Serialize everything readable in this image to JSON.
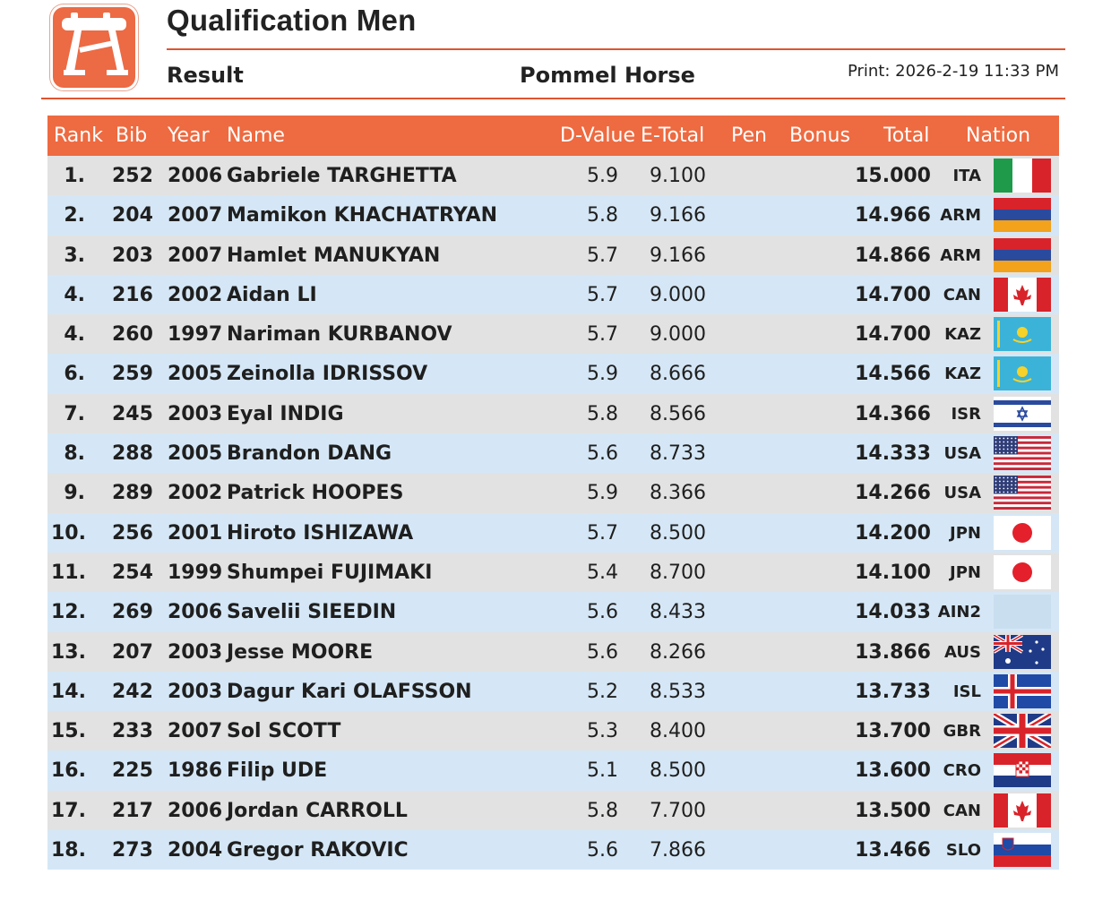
{
  "header": {
    "title": "Qualification Men",
    "subtitle_left": "Result",
    "subtitle_mid": "Pommel Horse",
    "print": "Print: 2026-2-19 11:33 PM",
    "logo_icon": "pommel-horse-icon"
  },
  "colors": {
    "accent": "#ee6a40",
    "row_odd": "#e2e2e2",
    "row_even": "#d5e7f6"
  },
  "columns": {
    "rank": "Rank",
    "bib": "Bib",
    "year": "Year",
    "name": "Name",
    "dvalue": "D-Value",
    "etotal": "E-Total",
    "pen": "Pen",
    "bonus": "Bonus",
    "total": "Total",
    "nation": "Nation"
  },
  "rows": [
    {
      "rank": "1.",
      "bib": "252",
      "year": "2006",
      "name": "Gabriele TARGHETTA",
      "dvalue": "5.9",
      "etotal": "9.100",
      "total": "15.000",
      "nation": "ITA",
      "flag": "italy-flag"
    },
    {
      "rank": "2.",
      "bib": "204",
      "year": "2007",
      "name": "Mamikon KHACHATRYAN",
      "dvalue": "5.8",
      "etotal": "9.166",
      "total": "14.966",
      "nation": "ARM",
      "flag": "armenia-flag"
    },
    {
      "rank": "3.",
      "bib": "203",
      "year": "2007",
      "name": "Hamlet MANUKYAN",
      "dvalue": "5.7",
      "etotal": "9.166",
      "total": "14.866",
      "nation": "ARM",
      "flag": "armenia-flag"
    },
    {
      "rank": "4.",
      "bib": "216",
      "year": "2002",
      "name": "Aidan LI",
      "dvalue": "5.7",
      "etotal": "9.000",
      "total": "14.700",
      "nation": "CAN",
      "flag": "canada-flag"
    },
    {
      "rank": "4.",
      "bib": "260",
      "year": "1997",
      "name": "Nariman KURBANOV",
      "dvalue": "5.7",
      "etotal": "9.000",
      "total": "14.700",
      "nation": "KAZ",
      "flag": "kazakhstan-flag"
    },
    {
      "rank": "6.",
      "bib": "259",
      "year": "2005",
      "name": "Zeinolla IDRISSOV",
      "dvalue": "5.9",
      "etotal": "8.666",
      "total": "14.566",
      "nation": "KAZ",
      "flag": "kazakhstan-flag"
    },
    {
      "rank": "7.",
      "bib": "245",
      "year": "2003",
      "name": "Eyal INDIG",
      "dvalue": "5.8",
      "etotal": "8.566",
      "total": "14.366",
      "nation": "ISR",
      "flag": "israel-flag"
    },
    {
      "rank": "8.",
      "bib": "288",
      "year": "2005",
      "name": "Brandon DANG",
      "dvalue": "5.6",
      "etotal": "8.733",
      "total": "14.333",
      "nation": "USA",
      "flag": "usa-flag"
    },
    {
      "rank": "9.",
      "bib": "289",
      "year": "2002",
      "name": "Patrick HOOPES",
      "dvalue": "5.9",
      "etotal": "8.366",
      "total": "14.266",
      "nation": "USA",
      "flag": "usa-flag"
    },
    {
      "rank": "10.",
      "bib": "256",
      "year": "2001",
      "name": "Hiroto ISHIZAWA",
      "dvalue": "5.7",
      "etotal": "8.500",
      "total": "14.200",
      "nation": "JPN",
      "flag": "japan-flag"
    },
    {
      "rank": "11.",
      "bib": "254",
      "year": "1999",
      "name": "Shumpei FUJIMAKI",
      "dvalue": "5.4",
      "etotal": "8.700",
      "total": "14.100",
      "nation": "JPN",
      "flag": "japan-flag"
    },
    {
      "rank": "12.",
      "bib": "269",
      "year": "2006",
      "name": "Savelii SIEEDIN",
      "dvalue": "5.6",
      "etotal": "8.433",
      "total": "14.033",
      "nation": "AIN2",
      "flag": "neutral-flag"
    },
    {
      "rank": "13.",
      "bib": "207",
      "year": "2003",
      "name": "Jesse MOORE",
      "dvalue": "5.6",
      "etotal": "8.266",
      "total": "13.866",
      "nation": "AUS",
      "flag": "australia-flag"
    },
    {
      "rank": "14.",
      "bib": "242",
      "year": "2003",
      "name": "Dagur Kari OLAFSSON",
      "dvalue": "5.2",
      "etotal": "8.533",
      "total": "13.733",
      "nation": "ISL",
      "flag": "iceland-flag"
    },
    {
      "rank": "15.",
      "bib": "233",
      "year": "2007",
      "name": "Sol SCOTT",
      "dvalue": "5.3",
      "etotal": "8.400",
      "total": "13.700",
      "nation": "GBR",
      "flag": "uk-flag"
    },
    {
      "rank": "16.",
      "bib": "225",
      "year": "1986",
      "name": "Filip UDE",
      "dvalue": "5.1",
      "etotal": "8.500",
      "total": "13.600",
      "nation": "CRO",
      "flag": "croatia-flag"
    },
    {
      "rank": "17.",
      "bib": "217",
      "year": "2006",
      "name": "Jordan CARROLL",
      "dvalue": "5.8",
      "etotal": "7.700",
      "total": "13.500",
      "nation": "CAN",
      "flag": "canada-flag"
    },
    {
      "rank": "18.",
      "bib": "273",
      "year": "2004",
      "name": "Gregor RAKOVIC",
      "dvalue": "5.6",
      "etotal": "7.866",
      "total": "13.466",
      "nation": "SLO",
      "flag": "slovenia-flag"
    }
  ]
}
